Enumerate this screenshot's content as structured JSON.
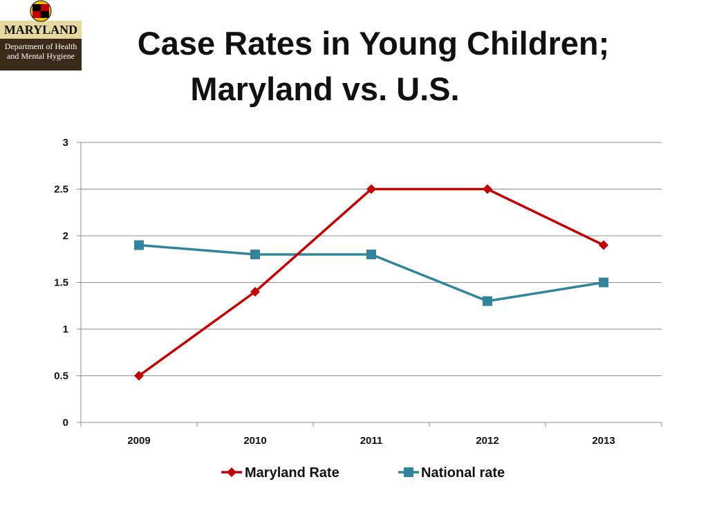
{
  "logo": {
    "state": "MARYLAND",
    "department_line1": "Department of Health",
    "department_line2": "and Mental Hygiene"
  },
  "chart_data": {
    "type": "line",
    "title_line1": "Case Rates in Young Children;",
    "title_line2": "Maryland vs. U.S.",
    "categories": [
      "2009",
      "2010",
      "2011",
      "2012",
      "2013"
    ],
    "ylim": [
      0,
      3
    ],
    "yticks": [
      "0",
      "0.5",
      "1",
      "1.5",
      "2",
      "2.5",
      "3"
    ],
    "grid": true,
    "legend_position": "bottom",
    "series": [
      {
        "name": "Maryland Rate",
        "values": [
          0.5,
          1.4,
          2.5,
          2.5,
          1.9
        ],
        "color": "#c00000",
        "marker": "diamond"
      },
      {
        "name": "National rate",
        "values": [
          1.9,
          1.8,
          1.8,
          1.3,
          1.5
        ],
        "color": "#31849b",
        "marker": "square"
      }
    ]
  }
}
